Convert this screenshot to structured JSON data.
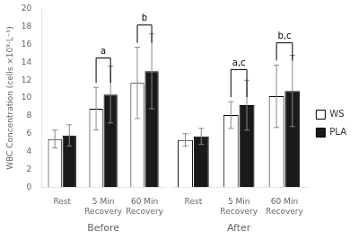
{
  "chart_data": [
    {
      "type": "bar",
      "xlabel": "Before",
      "ylabel": "WBC Concentration (cells ×10⁹·L⁻¹)",
      "categories": [
        "Rest",
        "5 Min\nRecovery",
        "60 Min\nRecovery"
      ],
      "series": [
        {
          "name": "WS",
          "color": "#ffffff",
          "values": [
            5.4,
            8.8,
            11.7
          ],
          "errors": [
            1.0,
            2.4,
            4.0
          ]
        },
        {
          "name": "PLA",
          "color": "#1a1a1a",
          "values": [
            5.8,
            10.4,
            13.0
          ],
          "errors": [
            1.2,
            3.2,
            4.2
          ]
        }
      ],
      "ylim": [
        0,
        20
      ],
      "yticks": [
        0,
        2,
        4,
        6,
        8,
        10,
        12,
        14,
        16,
        18,
        20
      ],
      "grid": false,
      "annotations": [
        {
          "text": "a",
          "category": "5 Min\nRecovery",
          "y": 14.5
        },
        {
          "text": "b",
          "category": "60 Min\nRecovery",
          "y": 18.2
        }
      ]
    },
    {
      "type": "bar",
      "xlabel": "After",
      "categories": [
        "Rest",
        "5 Min\nRecovery",
        "60 Min\nRecovery"
      ],
      "series": [
        {
          "name": "WS",
          "color": "#ffffff",
          "values": [
            5.3,
            8.1,
            10.2
          ],
          "errors": [
            0.7,
            1.5,
            3.5
          ]
        },
        {
          "name": "PLA",
          "color": "#1a1a1a",
          "values": [
            5.7,
            9.2,
            10.8
          ],
          "errors": [
            0.9,
            2.8,
            4.0
          ]
        }
      ],
      "ylim": [
        0,
        20
      ],
      "yticks": [
        0,
        2,
        4,
        6,
        8,
        10,
        12,
        14,
        16,
        18,
        20
      ],
      "grid": false,
      "tick_labels": "x",
      "legend": "right",
      "annotations": [
        {
          "text": "a,c",
          "category": "5 Min\nRecovery",
          "y": 13.2
        },
        {
          "text": "b,c",
          "category": "60 Min\nRecovery",
          "y": 16.2
        }
      ]
    }
  ]
}
